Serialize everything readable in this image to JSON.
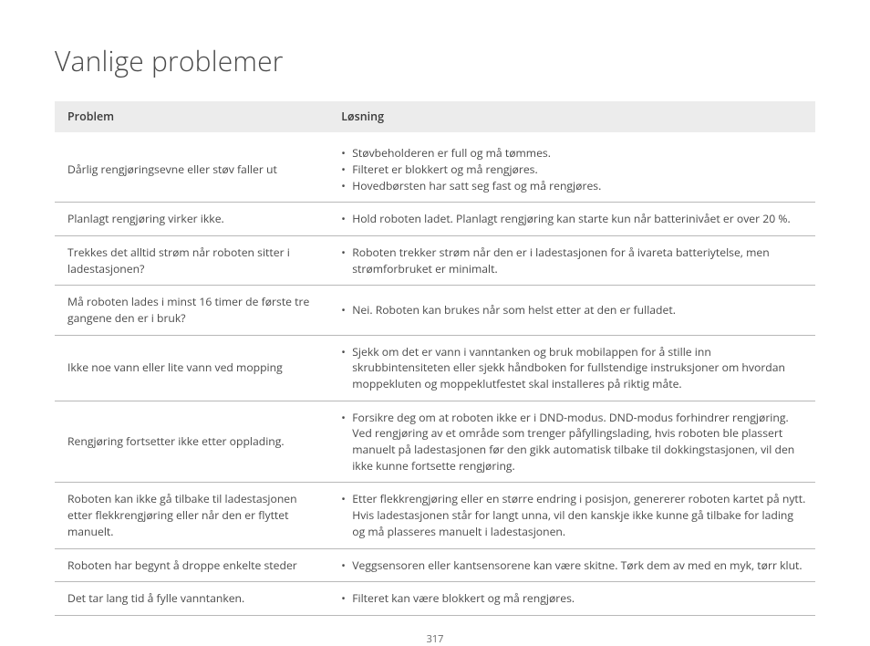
{
  "title": "Vanlige problemer",
  "page_number": "317",
  "table": {
    "header_bg": "#ececec",
    "border_color": "#b8b8b8",
    "text_color": "#4a4a4a",
    "columns": {
      "problem": "Problem",
      "solution": "Løsning"
    },
    "rows": [
      {
        "problem": "Dårlig rengjøringsevne eller støv faller ut",
        "solutions": [
          "Støvbeholderen er full og må tømmes.",
          "Filteret er blokkert og må rengjøres.",
          "Hovedbørsten har satt seg fast og må rengjøres."
        ]
      },
      {
        "problem": "Planlagt rengjøring virker ikke.",
        "solutions": [
          "Hold roboten ladet. Planlagt rengjøring kan starte kun når batterinivået er over 20 %."
        ]
      },
      {
        "problem": "Trekkes det alltid strøm når roboten sitter i ladestasjonen?",
        "solutions": [
          "Roboten trekker strøm når den er i ladestasjonen for å ivareta batteriytelse, men strømforbruket er minimalt."
        ]
      },
      {
        "problem": "Må roboten lades i minst 16 timer de første tre gangene den er i bruk?",
        "solutions": [
          "Nei. Roboten kan brukes når som helst etter at den er fulladet."
        ]
      },
      {
        "problem": "Ikke noe vann eller lite vann ved mopping",
        "solutions": [
          "Sjekk om det er vann i vanntanken og bruk mobilappen for å stille inn skrubbintensiteten eller sjekk håndboken for fullstendige instruksjoner om hvordan moppekluten og moppeklutfestet skal installeres på riktig måte."
        ]
      },
      {
        "problem": "Rengjøring fortsetter ikke etter opplading.",
        "solutions": [
          "Forsikre deg om at roboten ikke er i DND-modus. DND-modus forhindrer rengjøring. Ved rengjøring av et område som trenger påfyllingslading, hvis roboten ble plassert manuelt på ladestasjonen før den gikk automatisk tilbake til dokkingstasjonen, vil den ikke kunne fortsette rengjøring."
        ]
      },
      {
        "problem": "Roboten kan ikke gå tilbake til ladestasjonen etter flekkrengjøring eller når den er flyttet manuelt.",
        "solutions": [
          "Etter flekkrengjøring eller en større endring i posisjon, genererer roboten kartet på nytt. Hvis ladestasjonen står for langt unna, vil den kanskje ikke kunne gå tilbake for lading og må plasseres manuelt i ladestasjonen."
        ]
      },
      {
        "problem": "Roboten har begynt å droppe enkelte steder",
        "solutions": [
          "Veggsensoren eller kantsensorene kan være skitne. Tørk dem av med en myk, tørr klut."
        ]
      },
      {
        "problem": "Det tar lang tid å fylle vanntanken.",
        "solutions": [
          "Filteret kan være blokkert og må rengjøres."
        ]
      }
    ]
  }
}
